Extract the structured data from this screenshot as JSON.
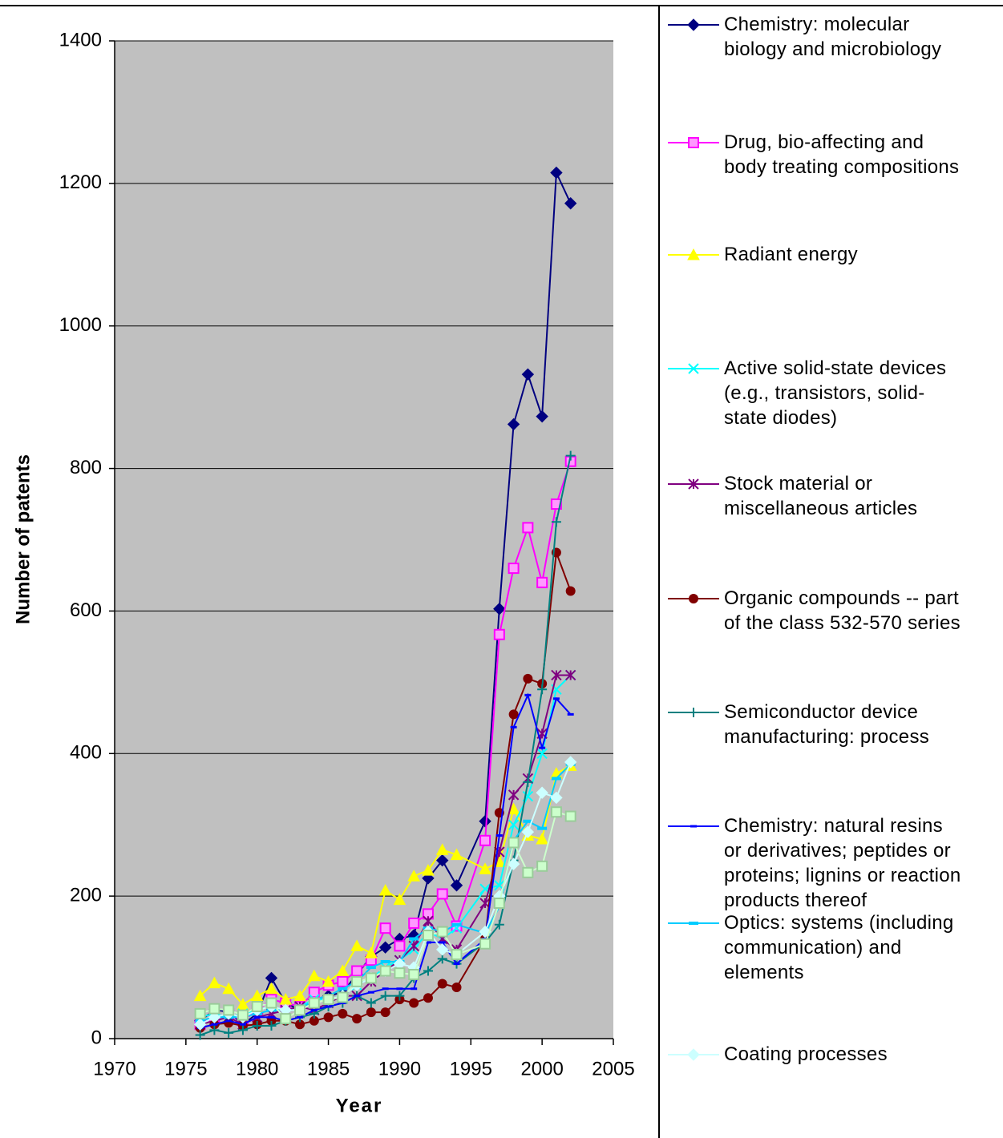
{
  "chart_data": {
    "type": "line",
    "xlabel": "Year",
    "ylabel": "Number of patents",
    "x": [
      1976,
      1977,
      1978,
      1979,
      1980,
      1981,
      1982,
      1983,
      1984,
      1985,
      1986,
      1987,
      1988,
      1989,
      1990,
      1991,
      1992,
      1993,
      1994,
      1996,
      1997,
      1998,
      1999,
      2000,
      2001,
      2002
    ],
    "xlim": [
      1970,
      2005
    ],
    "xticks": [
      1970,
      1975,
      1980,
      1985,
      1990,
      1995,
      2000,
      2005
    ],
    "ylim": [
      0,
      1400
    ],
    "yticks": [
      0,
      200,
      400,
      600,
      800,
      1000,
      1200,
      1400
    ],
    "grid": true,
    "legend": "right",
    "series": [
      {
        "name": "Chemistry: molecular\nbiology and microbiology",
        "color": "#000080",
        "marker": "diamond",
        "values": [
          25,
          40,
          38,
          20,
          35,
          85,
          50,
          40,
          55,
          60,
          65,
          90,
          115,
          128,
          140,
          145,
          225,
          250,
          215,
          305,
          603,
          862,
          932,
          873,
          1215,
          1172
        ]
      },
      {
        "name": "Drug, bio-affecting and\nbody treating compositions",
        "color": "#ff00ff",
        "marker": "square",
        "values": [
          20,
          30,
          35,
          25,
          40,
          55,
          50,
          45,
          65,
          75,
          80,
          95,
          110,
          155,
          130,
          162,
          175,
          203,
          158,
          278,
          567,
          660,
          717,
          640,
          750,
          810
        ]
      },
      {
        "name": "Radiant energy",
        "color": "#ffff00",
        "marker": "triangle",
        "values": [
          60,
          78,
          70,
          48,
          60,
          70,
          55,
          60,
          88,
          80,
          95,
          130,
          120,
          208,
          195,
          228,
          236,
          265,
          258,
          238,
          248,
          322,
          285,
          280,
          372,
          383
        ]
      },
      {
        "name": "Active solid-state devices\n(e.g., transistors, solid-\nstate diodes)",
        "color": "#00ffff",
        "marker": "x",
        "values": [
          30,
          35,
          30,
          35,
          40,
          45,
          40,
          45,
          55,
          55,
          60,
          75,
          85,
          100,
          110,
          125,
          150,
          140,
          155,
          210,
          215,
          300,
          340,
          400,
          490,
          510
        ]
      },
      {
        "name": "Stock material or\nmiscellaneous articles",
        "color": "#800080",
        "marker": "star",
        "values": [
          20,
          25,
          30,
          20,
          30,
          35,
          40,
          45,
          40,
          50,
          60,
          60,
          80,
          95,
          110,
          130,
          165,
          140,
          125,
          190,
          262,
          342,
          365,
          428,
          510,
          510
        ]
      },
      {
        "name": "Organic compounds -- part\nof the class 532-570 series",
        "color": "#800000",
        "marker": "circle",
        "values": [
          15,
          20,
          22,
          18,
          20,
          25,
          25,
          20,
          25,
          30,
          35,
          28,
          37,
          37,
          55,
          50,
          57,
          77,
          72,
          140,
          317,
          455,
          505,
          498,
          682,
          628
        ]
      },
      {
        "name": "Semiconductor device\nmanufacturing: process",
        "color": "#008080",
        "marker": "plus",
        "values": [
          5,
          12,
          8,
          12,
          18,
          18,
          25,
          30,
          35,
          45,
          50,
          60,
          50,
          60,
          60,
          85,
          95,
          112,
          105,
          135,
          160,
          250,
          360,
          490,
          725,
          818
        ]
      },
      {
        "name": "Chemistry: natural resins\nor derivatives; peptides or\nproteins; lignins or reaction\nproducts thereof",
        "color": "#0000ff",
        "marker": "dash",
        "values": [
          15,
          20,
          25,
          20,
          30,
          30,
          25,
          30,
          40,
          45,
          50,
          60,
          65,
          70,
          70,
          70,
          135,
          135,
          105,
          140,
          285,
          437,
          482,
          408,
          477,
          455
        ]
      },
      {
        "name": "Optics: systems (including\ncommunication) and\nelements",
        "color": "#00ccff",
        "marker": "bar",
        "values": [
          25,
          30,
          30,
          30,
          35,
          40,
          40,
          40,
          55,
          60,
          70,
          80,
          100,
          108,
          108,
          140,
          155,
          150,
          160,
          148,
          185,
          278,
          305,
          295,
          365,
          385
        ]
      },
      {
        "name": "Coating processes",
        "color": "#ccffff",
        "marker": "diamond",
        "values": [
          20,
          30,
          35,
          30,
          40,
          45,
          40,
          40,
          50,
          55,
          60,
          75,
          85,
          95,
          105,
          100,
          150,
          125,
          118,
          150,
          200,
          245,
          290,
          345,
          338,
          388
        ]
      },
      {
        "color": "#ccffcc",
        "marker": "square",
        "values": [
          35,
          42,
          40,
          33,
          45,
          50,
          28,
          40,
          50,
          55,
          58,
          80,
          85,
          95,
          92,
          90,
          145,
          150,
          118,
          133,
          190,
          275,
          233,
          242,
          318,
          312
        ]
      }
    ]
  }
}
